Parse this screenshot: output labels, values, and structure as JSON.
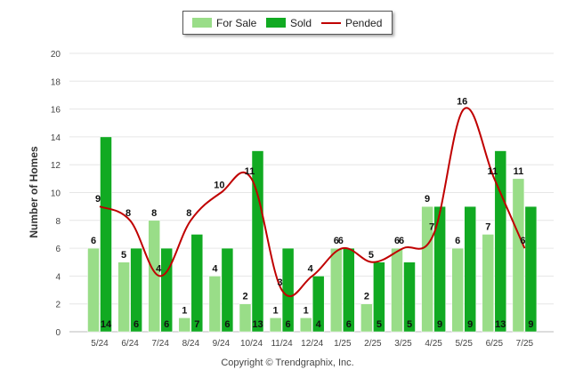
{
  "chart_data": {
    "type": "bar",
    "title": "",
    "xlabel": "",
    "ylabel": "Number of Homes",
    "ylim": [
      0,
      20
    ],
    "yticks": [
      0,
      2,
      4,
      6,
      8,
      10,
      12,
      14,
      16,
      18,
      20
    ],
    "grid": true,
    "legend_position": "top-center",
    "categories": [
      "5/24",
      "6/24",
      "7/24",
      "8/24",
      "9/24",
      "10/24",
      "11/24",
      "12/24",
      "1/25",
      "2/25",
      "3/25",
      "4/25",
      "5/25",
      "6/25",
      "7/25"
    ],
    "series": [
      {
        "name": "For Sale",
        "type": "bar",
        "color": "#99dd88",
        "values": [
          6,
          5,
          8,
          1,
          4,
          2,
          1,
          1,
          6,
          2,
          6,
          9,
          6,
          7,
          11
        ]
      },
      {
        "name": "Sold",
        "type": "bar",
        "color": "#11aa22",
        "values": [
          14,
          6,
          6,
          7,
          6,
          13,
          6,
          4,
          6,
          5,
          5,
          9,
          9,
          13,
          9
        ]
      },
      {
        "name": "Pended",
        "type": "line",
        "color": "#c00000",
        "values": [
          9,
          8,
          4,
          8,
          10,
          11,
          3,
          4,
          6,
          5,
          6,
          7,
          16,
          11,
          6
        ]
      }
    ]
  },
  "footer": {
    "copyright": "Copyright © Trendgraphix, Inc."
  }
}
